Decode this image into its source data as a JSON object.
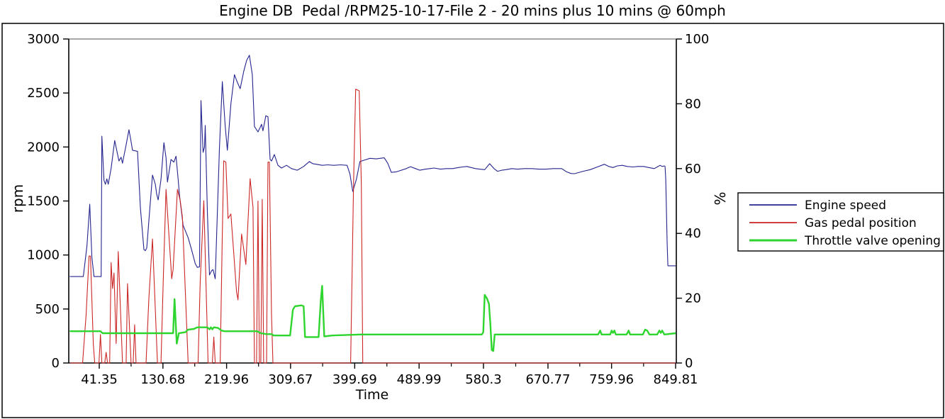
{
  "chart_data": {
    "type": "line",
    "title": "Engine DB  Pedal /RPM25-10-17-File 2 - 20 mins plus 10 mins @ 60mph",
    "x_axis": {
      "label": "Time",
      "tick_values": [
        41.35,
        130.68,
        219.96,
        309.67,
        399.69,
        489.99,
        580.3,
        670.77,
        759.96,
        849.81
      ],
      "tick_labels": [
        "41.35",
        "130.68",
        "219.96",
        "309.67",
        "399.69",
        "489.99",
        "580.3",
        "670.77",
        "759.96",
        "849.81"
      ],
      "minor_ticks_at_midpoints": true
    },
    "left_axis": {
      "label": "rpm",
      "min": 0,
      "max": 3000,
      "ticks": [
        0,
        500,
        1000,
        1500,
        2000,
        2500,
        3000
      ]
    },
    "right_axis": {
      "label": "%",
      "min": 0,
      "max": 100,
      "ticks": [
        0,
        20,
        40,
        60,
        80,
        100
      ]
    },
    "legend": {
      "position": "right",
      "entries": [
        "Engine speed",
        "Gas pedal position",
        "Throttle valve opening"
      ]
    },
    "colors": {
      "engine_speed": "#24248f",
      "gas_pedal": "#cc2626",
      "throttle": "#2ed52e",
      "top_spine": "#8a8a8a",
      "frame": "#000000"
    },
    "series": [
      {
        "name": "Engine speed",
        "axis": "left",
        "color": "#24248f",
        "width": 1.1,
        "points": [
          [
            0,
            800
          ],
          [
            19,
            800
          ],
          [
            24,
            1080
          ],
          [
            28,
            1470
          ],
          [
            31,
            980
          ],
          [
            34,
            800
          ],
          [
            44,
            800
          ],
          [
            45,
            2100
          ],
          [
            48,
            1690
          ],
          [
            50,
            1655
          ],
          [
            52,
            1705
          ],
          [
            54,
            1655
          ],
          [
            58,
            1800
          ],
          [
            63,
            2060
          ],
          [
            69,
            1870
          ],
          [
            72,
            1905
          ],
          [
            74,
            1850
          ],
          [
            79,
            2020
          ],
          [
            83,
            2160
          ],
          [
            86,
            2050
          ],
          [
            88,
            1970
          ],
          [
            95,
            1960
          ],
          [
            99,
            1440
          ],
          [
            104,
            1050
          ],
          [
            106,
            1040
          ],
          [
            108,
            1065
          ],
          [
            112,
            1400
          ],
          [
            116,
            1740
          ],
          [
            120,
            1655
          ],
          [
            122,
            1560
          ],
          [
            124,
            1510
          ],
          [
            128,
            1700
          ],
          [
            132,
            2040
          ],
          [
            135,
            1900
          ],
          [
            137,
            1675
          ],
          [
            140,
            1800
          ],
          [
            142,
            1885
          ],
          [
            146,
            1860
          ],
          [
            149,
            1915
          ],
          [
            152,
            1700
          ],
          [
            154,
            1545
          ],
          [
            159,
            1275
          ],
          [
            163,
            1210
          ],
          [
            166,
            1160
          ],
          [
            171,
            1045
          ],
          [
            176,
            920
          ],
          [
            179,
            885
          ],
          [
            182,
            890
          ],
          [
            184,
            2430
          ],
          [
            186,
            2100
          ],
          [
            187,
            1950
          ],
          [
            189,
            2000
          ],
          [
            190,
            2200
          ],
          [
            193,
            1400
          ],
          [
            196,
            815
          ],
          [
            199,
            855
          ],
          [
            201,
            865
          ],
          [
            204,
            780
          ],
          [
            210,
            2000
          ],
          [
            214,
            2605
          ],
          [
            218,
            2200
          ],
          [
            221,
            1970
          ],
          [
            226,
            2400
          ],
          [
            231,
            2670
          ],
          [
            235,
            2600
          ],
          [
            239,
            2540
          ],
          [
            244,
            2700
          ],
          [
            248,
            2800
          ],
          [
            252,
            2850
          ],
          [
            256,
            2670
          ],
          [
            259,
            2190
          ],
          [
            262,
            2160
          ],
          [
            264,
            2140
          ],
          [
            267,
            2180
          ],
          [
            269,
            2210
          ],
          [
            271,
            2150
          ],
          [
            275,
            2290
          ],
          [
            278,
            2280
          ],
          [
            281,
            1885
          ],
          [
            283,
            1870
          ],
          [
            287,
            1930
          ],
          [
            292,
            1830
          ],
          [
            297,
            1805
          ],
          [
            304,
            1830
          ],
          [
            311,
            1800
          ],
          [
            319,
            1785
          ],
          [
            328,
            1820
          ],
          [
            336,
            1865
          ],
          [
            341,
            1845
          ],
          [
            346,
            1840
          ],
          [
            354,
            1830
          ],
          [
            362,
            1835
          ],
          [
            370,
            1830
          ],
          [
            380,
            1835
          ],
          [
            389,
            1830
          ],
          [
            393,
            1750
          ],
          [
            397,
            1588
          ],
          [
            402,
            1700
          ],
          [
            407,
            1865
          ],
          [
            414,
            1880
          ],
          [
            421,
            1895
          ],
          [
            430,
            1890
          ],
          [
            441,
            1900
          ],
          [
            446,
            1850
          ],
          [
            451,
            1765
          ],
          [
            458,
            1770
          ],
          [
            465,
            1785
          ],
          [
            472,
            1800
          ],
          [
            478,
            1818
          ],
          [
            485,
            1800
          ],
          [
            491,
            1785
          ],
          [
            499,
            1795
          ],
          [
            505,
            1800
          ],
          [
            511,
            1805
          ],
          [
            520,
            1795
          ],
          [
            528,
            1800
          ],
          [
            537,
            1800
          ],
          [
            545,
            1810
          ],
          [
            551,
            1815
          ],
          [
            557,
            1820
          ],
          [
            563,
            1810
          ],
          [
            569,
            1800
          ],
          [
            575,
            1795
          ],
          [
            582,
            1790
          ],
          [
            589,
            1845
          ],
          [
            595,
            1800
          ],
          [
            600,
            1775
          ],
          [
            606,
            1785
          ],
          [
            612,
            1790
          ],
          [
            620,
            1800
          ],
          [
            628,
            1795
          ],
          [
            638,
            1800
          ],
          [
            648,
            1800
          ],
          [
            658,
            1795
          ],
          [
            668,
            1795
          ],
          [
            678,
            1800
          ],
          [
            690,
            1800
          ],
          [
            697,
            1770
          ],
          [
            703,
            1755
          ],
          [
            708,
            1753
          ],
          [
            712,
            1760
          ],
          [
            720,
            1775
          ],
          [
            730,
            1790
          ],
          [
            740,
            1815
          ],
          [
            750,
            1840
          ],
          [
            756,
            1820
          ],
          [
            762,
            1810
          ],
          [
            768,
            1825
          ],
          [
            775,
            1830
          ],
          [
            782,
            1820
          ],
          [
            790,
            1815
          ],
          [
            797,
            1820
          ],
          [
            805,
            1820
          ],
          [
            812,
            1810
          ],
          [
            820,
            1800
          ],
          [
            824,
            1815
          ],
          [
            828,
            1830
          ],
          [
            831,
            1820
          ],
          [
            834,
            1825
          ],
          [
            835,
            1820
          ],
          [
            836,
            1700
          ],
          [
            838,
            1100
          ],
          [
            839,
            900
          ],
          [
            850,
            900
          ]
        ]
      },
      {
        "name": "Gas pedal position",
        "axis": "right",
        "color": "#cc2626",
        "width": 1.1,
        "points": [
          [
            0,
            0
          ],
          [
            18,
            0
          ],
          [
            23,
            15
          ],
          [
            27,
            33
          ],
          [
            29,
            33
          ],
          [
            33,
            6
          ],
          [
            35,
            0
          ],
          [
            41,
            0
          ],
          [
            43,
            8.8
          ],
          [
            45,
            0
          ],
          [
            49,
            0
          ],
          [
            51,
            3.3
          ],
          [
            53,
            0
          ],
          [
            56,
            0
          ],
          [
            58,
            31
          ],
          [
            60,
            23
          ],
          [
            62,
            27.8
          ],
          [
            65,
            6
          ],
          [
            68,
            34.4
          ],
          [
            74,
            0
          ],
          [
            79,
            0
          ],
          [
            81,
            24.5
          ],
          [
            86,
            0
          ],
          [
            89,
            0
          ],
          [
            91,
            11.8
          ],
          [
            93,
            0
          ],
          [
            107,
            0
          ],
          [
            111,
            20
          ],
          [
            116,
            38.3
          ],
          [
            123,
            0
          ],
          [
            128,
            0
          ],
          [
            131,
            25
          ],
          [
            135,
            53.6
          ],
          [
            143,
            26
          ],
          [
            145,
            28.9
          ],
          [
            151,
            53.6
          ],
          [
            155,
            50
          ],
          [
            158,
            45
          ],
          [
            166,
            0
          ],
          [
            180,
            0
          ],
          [
            183,
            25
          ],
          [
            188,
            50.1
          ],
          [
            194,
            0
          ],
          [
            200,
            0
          ],
          [
            202,
            8
          ],
          [
            204,
            0
          ],
          [
            211,
            0
          ],
          [
            214,
            40
          ],
          [
            216,
            62.4
          ],
          [
            219,
            62
          ],
          [
            222,
            44.6
          ],
          [
            226,
            46
          ],
          [
            234,
            21.9
          ],
          [
            236,
            19.5
          ],
          [
            241,
            39.8
          ],
          [
            247,
            30.4
          ],
          [
            253,
            56.9
          ],
          [
            257,
            48
          ],
          [
            259,
            0
          ],
          [
            262,
            0
          ],
          [
            264,
            50
          ],
          [
            266,
            0
          ],
          [
            268,
            0
          ],
          [
            270,
            50.5
          ],
          [
            272,
            0
          ],
          [
            276,
            0
          ],
          [
            278,
            62
          ],
          [
            280,
            62
          ],
          [
            283,
            15
          ],
          [
            285,
            0
          ],
          [
            394,
            0
          ],
          [
            398,
            55
          ],
          [
            401,
            84.5
          ],
          [
            406,
            84
          ],
          [
            409,
            55
          ],
          [
            411,
            0
          ],
          [
            850,
            0
          ]
        ]
      },
      {
        "name": "Throttle valve opening",
        "axis": "right",
        "color": "#2ed52e",
        "width": 2.4,
        "points": [
          [
            0,
            9.8
          ],
          [
            43,
            9.8
          ],
          [
            46,
            9.2
          ],
          [
            145,
            9.2
          ],
          [
            147,
            19.7
          ],
          [
            150,
            6
          ],
          [
            153,
            9.2
          ],
          [
            162,
            9.5
          ],
          [
            166,
            10.3
          ],
          [
            174,
            10.5
          ],
          [
            179,
            11
          ],
          [
            193,
            11
          ],
          [
            196,
            10.4
          ],
          [
            198,
            11
          ],
          [
            200,
            10.4
          ],
          [
            202,
            11
          ],
          [
            208,
            10.8
          ],
          [
            213,
            10
          ],
          [
            217,
            9.8
          ],
          [
            263,
            9.8
          ],
          [
            268,
            9.2
          ],
          [
            276,
            8.9
          ],
          [
            283,
            8.9
          ],
          [
            286,
            8.5
          ],
          [
            309,
            8.5
          ],
          [
            313,
            16.5
          ],
          [
            316,
            17.5
          ],
          [
            325,
            17.8
          ],
          [
            328,
            17.5
          ],
          [
            330,
            8
          ],
          [
            349,
            8
          ],
          [
            352,
            19
          ],
          [
            354,
            23.8
          ],
          [
            357,
            8.2
          ],
          [
            368,
            8.5
          ],
          [
            408,
            8.8
          ],
          [
            578,
            8.8
          ],
          [
            580,
            9.5
          ],
          [
            582,
            21
          ],
          [
            585,
            20
          ],
          [
            588,
            18.3
          ],
          [
            590,
            12
          ],
          [
            592,
            4
          ],
          [
            594,
            3.7
          ],
          [
            596,
            8.8
          ],
          [
            741,
            8.8
          ],
          [
            744,
            10
          ],
          [
            746,
            8.8
          ],
          [
            758,
            8.8
          ],
          [
            760,
            10
          ],
          [
            762,
            9.3
          ],
          [
            764,
            10
          ],
          [
            766,
            8.8
          ],
          [
            781,
            8.8
          ],
          [
            784,
            10
          ],
          [
            786,
            8.8
          ],
          [
            804,
            8.8
          ],
          [
            807,
            10.3
          ],
          [
            810,
            10
          ],
          [
            813,
            8.8
          ],
          [
            824,
            8.8
          ],
          [
            827,
            10
          ],
          [
            829,
            9.3
          ],
          [
            831,
            10
          ],
          [
            834,
            8.8
          ],
          [
            850,
            9.2
          ]
        ]
      }
    ]
  }
}
